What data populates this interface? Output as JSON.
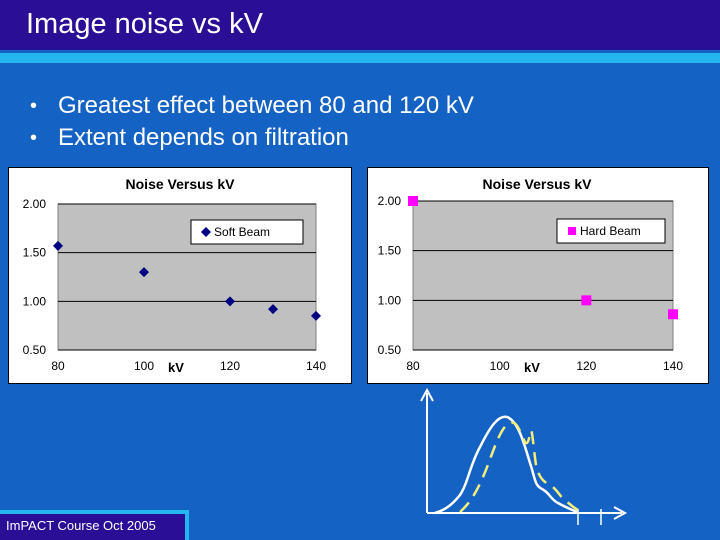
{
  "slide": {
    "title": "Image noise vs kV",
    "bullets": [
      "Greatest effect between 80 and 120 kV",
      "Extent depends on filtration"
    ],
    "footer": "ImPACT Course Oct 2005"
  },
  "colors": {
    "background": "#1462c4",
    "title_bar": "#2a0f96",
    "accent_stripe": "#25b6f0",
    "plot_area": "#c0c0c0",
    "soft_beam": "#000080",
    "hard_beam": "#ff00ff",
    "spectrum_solid": "#ffffff",
    "spectrum_dashed": "#f5ee7a"
  },
  "chart_data": [
    {
      "type": "scatter",
      "title": "Noise Versus kV",
      "xlabel": "kV",
      "ylabel": "",
      "xlim": [
        80,
        140
      ],
      "ylim": [
        0.5,
        2.0
      ],
      "x_ticks": [
        "80",
        "100",
        "120",
        "140"
      ],
      "y_ticks": [
        "0.50",
        "1.00",
        "1.50",
        "2.00"
      ],
      "grid": true,
      "legend": "top-right",
      "series": [
        {
          "name": "Soft Beam",
          "marker": "diamond",
          "color": "#000080",
          "x": [
            80,
            100,
            120,
            130,
            140
          ],
          "y": [
            1.57,
            1.3,
            1.0,
            0.92,
            0.85
          ]
        }
      ]
    },
    {
      "type": "scatter",
      "title": "Noise Versus kV",
      "xlabel": "kV",
      "ylabel": "",
      "xlim": [
        80,
        140
      ],
      "ylim": [
        0.5,
        2.0
      ],
      "x_ticks": [
        "80",
        "100",
        "120",
        "140"
      ],
      "y_ticks": [
        "0.50",
        "1.00",
        "1.50",
        "2.00"
      ],
      "grid": true,
      "legend": "top-right",
      "series": [
        {
          "name": "Hard Beam",
          "marker": "square",
          "color": "#ff00ff",
          "x": [
            80,
            120,
            140
          ],
          "y": [
            2.0,
            1.0,
            0.86
          ]
        }
      ]
    }
  ]
}
